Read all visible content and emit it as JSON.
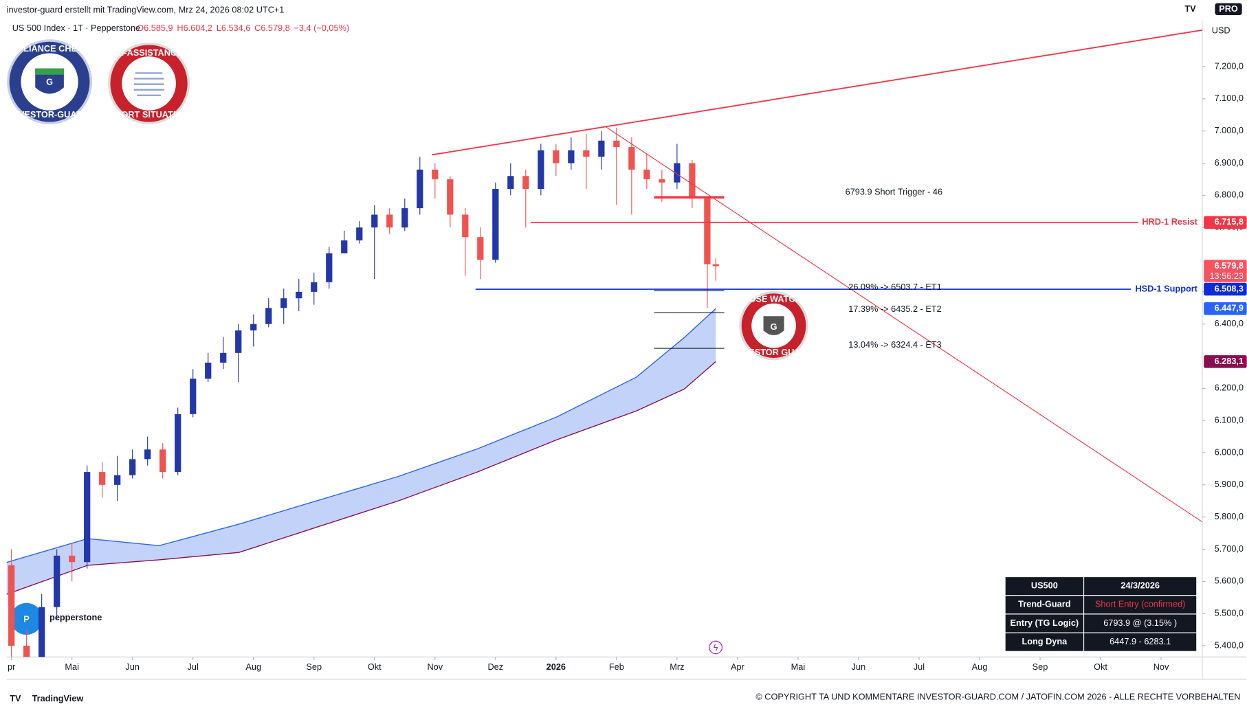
{
  "header": {
    "caption": "investor-guard erstellt mit TradingView.com, Mrz 24, 2026 08:02 UTC+1",
    "brand_badge": "PRO",
    "currency": "USD"
  },
  "symbol": {
    "name": "US 500 Index · 1T · Pepperstone",
    "ohlc": [
      "O6.585,9",
      "H6.604,2",
      "L6.534,6",
      "C6.579,8",
      "−3,4 (−0,05%)"
    ]
  },
  "badges": {
    "compliance": [
      "COMPLIANCE CHECKED",
      "INVESTOR-GUARD"
    ],
    "ki": [
      "KI-ASSISTANCE",
      "SHORT SITUATION"
    ],
    "watch": [
      "CLOSE WATCH!!!",
      "INVESTOR GUARD"
    ]
  },
  "broker_logo": "pepperstone",
  "chart_data": {
    "type": "candlestick",
    "up_color": "#2337a8",
    "down_color": "#ef5350",
    "grid": false,
    "xlim": [
      -0.08,
      19.68
    ],
    "ylim": [
      5365,
      7343
    ],
    "xticks": [
      {
        "value": 0,
        "label": "pr"
      },
      {
        "value": 1,
        "label": "Mai"
      },
      {
        "value": 2,
        "label": "Jun"
      },
      {
        "value": 3,
        "label": "Jul"
      },
      {
        "value": 4,
        "label": "Aug"
      },
      {
        "value": 5,
        "label": "Sep"
      },
      {
        "value": 6,
        "label": "Okt"
      },
      {
        "value": 7,
        "label": "Nov"
      },
      {
        "value": 8,
        "label": "Dez"
      },
      {
        "value": 9,
        "label": "2026"
      },
      {
        "value": 10,
        "label": "Feb"
      },
      {
        "value": 11,
        "label": "Mrz"
      },
      {
        "value": 12,
        "label": "Apr"
      },
      {
        "value": 13,
        "label": "Mai"
      },
      {
        "value": 14,
        "label": "Jun"
      },
      {
        "value": 15,
        "label": "Jul"
      },
      {
        "value": 16,
        "label": "Aug"
      },
      {
        "value": 17,
        "label": "Sep"
      },
      {
        "value": 18,
        "label": "Okt"
      },
      {
        "value": 19,
        "label": "Nov"
      }
    ],
    "yticks": [
      {
        "value": 5400,
        "label": "5.400,0"
      },
      {
        "value": 5500,
        "label": "5.500,0"
      },
      {
        "value": 5600,
        "label": "5.600,0"
      },
      {
        "value": 5700,
        "label": "5.700,0"
      },
      {
        "value": 5800,
        "label": "5.800,0"
      },
      {
        "value": 5900,
        "label": "5.900,0"
      },
      {
        "value": 6000,
        "label": "6.000,0"
      },
      {
        "value": 6100,
        "label": "6.100,0"
      },
      {
        "value": 6200,
        "label": "6.200,0"
      },
      {
        "value": 6400,
        "label": "6.400,0"
      },
      {
        "value": 6500,
        "label": "6.500,0"
      },
      {
        "value": 6700,
        "label": "6.700,0"
      },
      {
        "value": 6800,
        "label": "6.800,0"
      },
      {
        "value": 6900,
        "label": "6.900,0"
      },
      {
        "value": 7000,
        "label": "7.000,0"
      },
      {
        "value": 7100,
        "label": "7.100,0"
      },
      {
        "value": 7200,
        "label": "7.200,0"
      }
    ],
    "candles": {
      "x": [
        0,
        0.25,
        0.5,
        0.75,
        1,
        1.25,
        1.5,
        1.75,
        2,
        2.25,
        2.5,
        2.75,
        3,
        3.25,
        3.5,
        3.75,
        4,
        4.25,
        4.5,
        4.75,
        5,
        5.25,
        5.5,
        5.75,
        6,
        6.25,
        6.5,
        6.75,
        7,
        7.25,
        7.5,
        7.75,
        8,
        8.25,
        8.5,
        8.75,
        9,
        9.25,
        9.5,
        9.75,
        10,
        10.25,
        10.5,
        10.75,
        11,
        11.25,
        11.5,
        11.64
      ],
      "open": [
        5650,
        5400,
        5250,
        5520,
        5680,
        5660,
        5940,
        5900,
        5930,
        5980,
        6010,
        5940,
        6120,
        6230,
        6280,
        6310,
        6380,
        6400,
        6450,
        6480,
        6500,
        6530,
        6620,
        6660,
        6700,
        6740,
        6700,
        6760,
        6880,
        6850,
        6740,
        6670,
        6600,
        6820,
        6860,
        6820,
        6940,
        6900,
        6940,
        6920,
        6970,
        6950,
        6880,
        6850,
        6840,
        6900,
        6790,
        6585.9
      ],
      "high": [
        5700,
        5450,
        5560,
        5700,
        5720,
        5960,
        5970,
        5990,
        6010,
        6050,
        6030,
        6140,
        6260,
        6310,
        6360,
        6400,
        6430,
        6480,
        6510,
        6540,
        6560,
        6640,
        6690,
        6720,
        6770,
        6760,
        6790,
        6920,
        6900,
        6860,
        6760,
        6700,
        6840,
        6900,
        6880,
        6960,
        6960,
        6980,
        6990,
        7000,
        7010,
        6980,
        6930,
        6880,
        6960,
        6910,
        6790,
        6604.2
      ],
      "low": [
        5300,
        5100,
        5200,
        5480,
        5600,
        5640,
        5860,
        5850,
        5920,
        5960,
        5920,
        5930,
        6110,
        6220,
        6260,
        6220,
        6330,
        6390,
        6400,
        6440,
        6460,
        6510,
        6620,
        6650,
        6540,
        6680,
        6690,
        6740,
        6790,
        6700,
        6550,
        6540,
        6590,
        6800,
        6700,
        6800,
        6860,
        6880,
        6820,
        6880,
        6770,
        6740,
        6820,
        6780,
        6820,
        6760,
        6450,
        6534.6
      ],
      "close": [
        5400,
        5250,
        5520,
        5680,
        5660,
        5940,
        5900,
        5930,
        5980,
        6010,
        5940,
        6120,
        6230,
        6280,
        6310,
        6380,
        6400,
        6450,
        6480,
        6500,
        6530,
        6620,
        6660,
        6700,
        6740,
        6700,
        6760,
        6880,
        6850,
        6740,
        6670,
        6600,
        6820,
        6860,
        6820,
        6940,
        6900,
        6940,
        6920,
        6970,
        6950,
        6880,
        6850,
        6840,
        6900,
        6790,
        6585.9,
        6579.8
      ]
    },
    "band": {
      "x": [
        -0.08,
        1.26,
        2.44,
        3.76,
        5.07,
        6.39,
        7.7,
        9.01,
        10.33,
        11.12,
        11.64
      ],
      "upper": [
        5659,
        5733,
        5711,
        5778,
        5852,
        5926,
        6012,
        6111,
        6235,
        6358,
        6447.9
      ],
      "upper_color": "#2962ff",
      "lower": [
        5560,
        5650,
        5667,
        5690,
        5770,
        5850,
        5940,
        6040,
        6130,
        6198,
        6283.1
      ],
      "lower_color": "#880e4f",
      "fill": "#b3c7f7"
    },
    "trendlines": [
      {
        "x": [
          6.95,
          19.68
        ],
        "y": [
          6926,
          7313.6
        ],
        "color": "#f23645",
        "width": 1.6
      },
      {
        "x": [
          9.83,
          19.68
        ],
        "y": [
          7012,
          5785
        ],
        "color": "#f23645",
        "width": 1
      }
    ],
    "levels": [
      {
        "name": "HRD-1 Resist",
        "value": 6715.8,
        "x": [
          8.58,
          18.62
        ],
        "color": "#f23645"
      },
      {
        "name": "HSD-1 Support",
        "value": 6508.3,
        "x": [
          7.67,
          18.5
        ],
        "color": "#0d2bd8"
      }
    ],
    "short_trigger": {
      "value": 6793.9,
      "x": [
        10.62,
        11.78
      ],
      "label": "6793.9  Short Trigger - 46",
      "color": "#f23645"
    },
    "targets": [
      {
        "value": 6503.7,
        "label": "26.09% -> 6503.7 - ET1"
      },
      {
        "value": 6435.2,
        "label": "17.39% -> 6435.2 - ET2"
      },
      {
        "value": 6324.4,
        "label": "13.04% -> 6324.4 - ET3"
      }
    ],
    "target_x": [
      10.62,
      11.78
    ],
    "price_tags": [
      {
        "value": 6715.8,
        "label": "6.715,8",
        "color": "#f23645"
      },
      {
        "value": 6579.8,
        "label": "6.579,8",
        "sub": "13:56:23",
        "color": "#f7525f"
      },
      {
        "value": 6508.3,
        "label": "6.508,3",
        "color": "#0d2bd8"
      },
      {
        "value": 6447.9,
        "label": "6.447,9",
        "color": "#2962ff"
      },
      {
        "value": 6283.1,
        "label": "6.283,1",
        "color": "#880e4f"
      }
    ]
  },
  "table": {
    "rows": [
      [
        "US500",
        "24/3/2026"
      ],
      [
        "Trend-Guard",
        "Short Entry (confirmed)"
      ],
      [
        "Entry (TG Logic)",
        "6793.9 @ (3.15% )"
      ],
      [
        "Long Dyna",
        "6447.9 - 6283.1"
      ]
    ]
  },
  "footer": {
    "logo": "TradingView",
    "copyright": "© COPYRIGHT TA UND KOMMENTARE INVESTOR-GUARD.COM / JATOFIN.COM 2026 - ALLE RECHTE VORBEHALTEN"
  }
}
